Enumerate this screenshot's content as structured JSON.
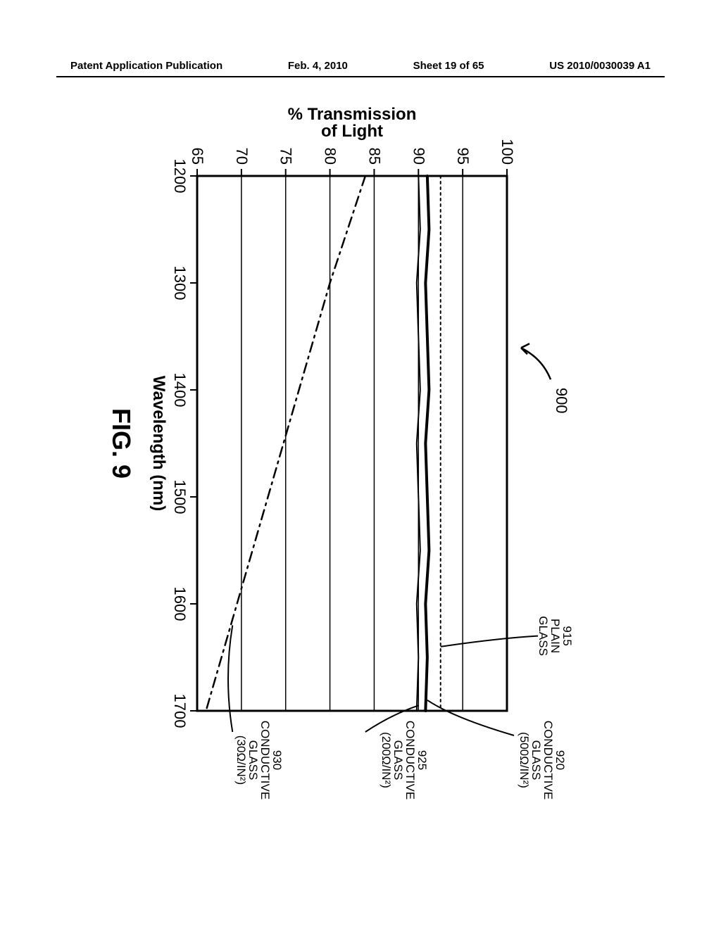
{
  "header": {
    "left": "Patent Application Publication",
    "center": "Feb. 4, 2010",
    "sheet": "Sheet 19 of 65",
    "right": "US 2010/0030039 A1"
  },
  "figure": {
    "number": "900",
    "label": "FIG. 9",
    "chart": {
      "type": "line",
      "xlabel": "Wavelength (nm)",
      "ylabel": "% Transmission\nof Light",
      "xlim": [
        1200,
        1700
      ],
      "ylim": [
        65,
        100
      ],
      "xtick_step": 100,
      "ytick_step": 5,
      "xticks": [
        1200,
        1300,
        1400,
        1500,
        1600,
        1700
      ],
      "yticks": [
        65,
        70,
        75,
        80,
        85,
        90,
        95,
        100
      ],
      "background_color": "#ffffff",
      "grid_color": "#000000",
      "axis_fontsize": 20,
      "axis_fontweight": "bold",
      "tick_fontsize": 18,
      "series": [
        {
          "id": "915",
          "label_lines": [
            "915",
            "PLAIN",
            "GLASS"
          ],
          "style": "dotted",
          "color": "#000000",
          "linewidth": 2,
          "x": [
            1200,
            1300,
            1400,
            1500,
            1600,
            1700
          ],
          "y": [
            92.5,
            92.5,
            92.5,
            92.5,
            92.5,
            92.5
          ]
        },
        {
          "id": "920",
          "label_lines": [
            "920",
            "CONDUCTIVE",
            "GLASS",
            "(500Ω/IN²)"
          ],
          "style": "solid-thick",
          "color": "#000000",
          "linewidth": 4,
          "x": [
            1200,
            1250,
            1300,
            1350,
            1400,
            1450,
            1500,
            1550,
            1600,
            1650,
            1700
          ],
          "y": [
            91,
            91.2,
            90.8,
            91,
            91.2,
            90.8,
            91,
            91.2,
            90.8,
            91,
            90.8
          ]
        },
        {
          "id": "925",
          "label_lines": [
            "925",
            "CONDUCTIVE",
            "GLASS",
            "(200Ω/IN²)"
          ],
          "style": "solid-thin",
          "color": "#000000",
          "linewidth": 2,
          "x": [
            1200,
            1250,
            1300,
            1350,
            1400,
            1450,
            1500,
            1550,
            1600,
            1650,
            1700
          ],
          "y": [
            90,
            90.2,
            89.8,
            90,
            90.2,
            89.8,
            90,
            90.2,
            89.8,
            90,
            89.8
          ]
        },
        {
          "id": "930",
          "label_lines": [
            "930",
            "CONDUCTIVE",
            "GLASS",
            "(30Ω/IN²)"
          ],
          "style": "dash-dot",
          "color": "#000000",
          "linewidth": 2.5,
          "x": [
            1200,
            1300,
            1400,
            1500,
            1600,
            1700
          ],
          "y": [
            84,
            80,
            76.5,
            73,
            69.5,
            66
          ]
        }
      ]
    }
  }
}
